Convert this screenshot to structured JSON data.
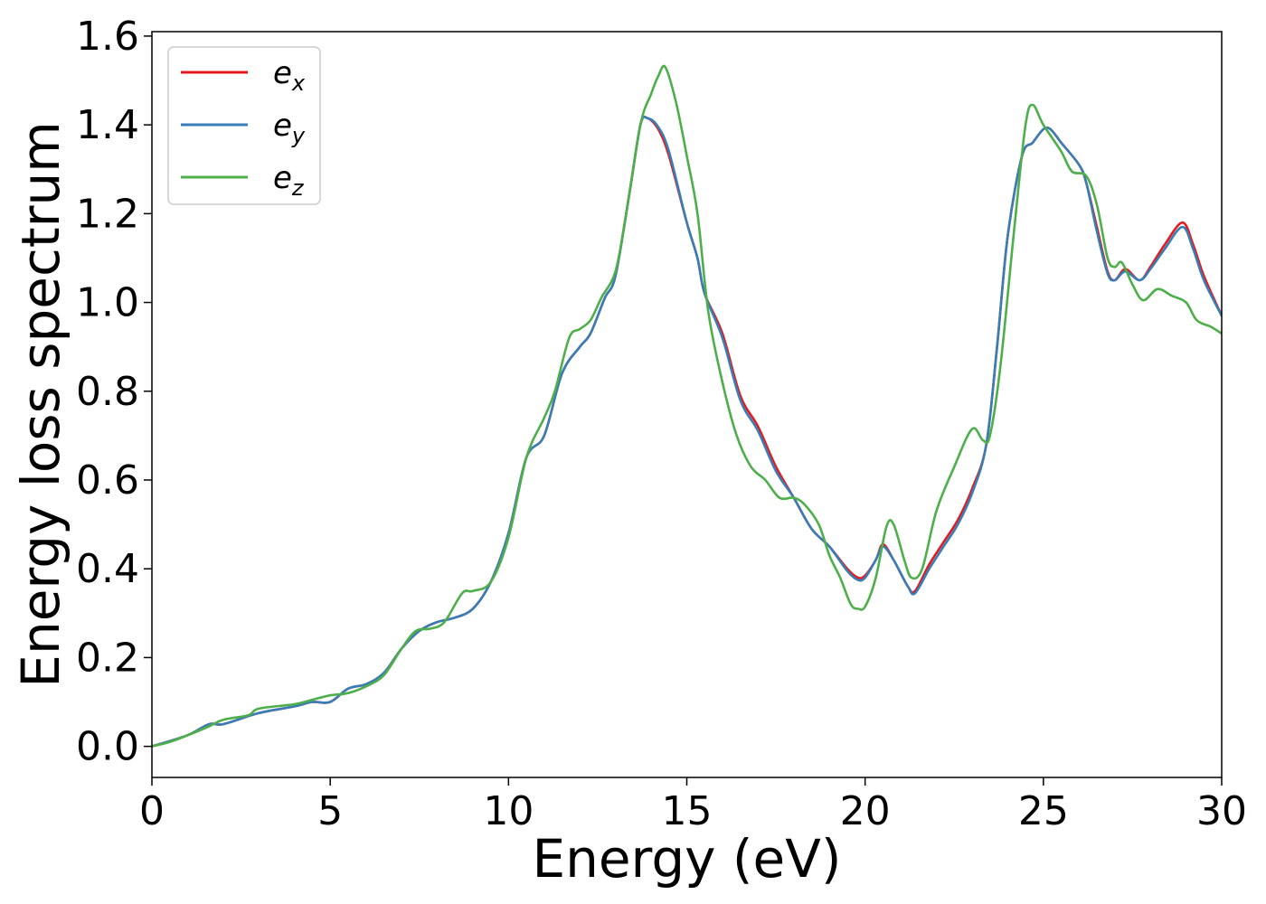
{
  "chart_data": {
    "type": "line",
    "xlabel": "Energy (eV)",
    "ylabel": "Energy loss spectrum",
    "xlim": [
      0,
      30
    ],
    "ylim": [
      -0.07,
      1.61
    ],
    "xticks": [
      0,
      5,
      10,
      15,
      20,
      25,
      30
    ],
    "xtick_labels": [
      "0",
      "5",
      "10",
      "15",
      "20",
      "25",
      "30"
    ],
    "yticks": [
      0.0,
      0.2,
      0.4,
      0.6,
      0.8,
      1.0,
      1.2,
      1.4,
      1.6
    ],
    "ytick_labels": [
      "0.0",
      "0.2",
      "0.4",
      "0.6",
      "0.8",
      "1.0",
      "1.2",
      "1.4",
      "1.6"
    ],
    "grid": false,
    "legend_position": "top-left",
    "series": [
      {
        "name": "e",
        "subscript": "x",
        "color": "#e41a1c",
        "points": [
          [
            0,
            0
          ],
          [
            1,
            0.025
          ],
          [
            1.6,
            0.05
          ],
          [
            2,
            0.05
          ],
          [
            3,
            0.075
          ],
          [
            4,
            0.09
          ],
          [
            4.5,
            0.1
          ],
          [
            5,
            0.1
          ],
          [
            5.5,
            0.13
          ],
          [
            6,
            0.14
          ],
          [
            6.5,
            0.165
          ],
          [
            7,
            0.22
          ],
          [
            7.5,
            0.26
          ],
          [
            8,
            0.28
          ],
          [
            8.5,
            0.29
          ],
          [
            9,
            0.31
          ],
          [
            9.5,
            0.37
          ],
          [
            10,
            0.48
          ],
          [
            10.5,
            0.65
          ],
          [
            11,
            0.7
          ],
          [
            11.5,
            0.84
          ],
          [
            12,
            0.9
          ],
          [
            12.3,
            0.93
          ],
          [
            12.7,
            1.01
          ],
          [
            13,
            1.06
          ],
          [
            13.4,
            1.25
          ],
          [
            13.7,
            1.4
          ],
          [
            13.9,
            1.415
          ],
          [
            14.2,
            1.39
          ],
          [
            14.5,
            1.33
          ],
          [
            15,
            1.18
          ],
          [
            15.3,
            1.1
          ],
          [
            15.5,
            1.02
          ],
          [
            16,
            0.93
          ],
          [
            16.5,
            0.79
          ],
          [
            17,
            0.72
          ],
          [
            17.5,
            0.63
          ],
          [
            18,
            0.56
          ],
          [
            18.5,
            0.49
          ],
          [
            19,
            0.45
          ],
          [
            19.5,
            0.4
          ],
          [
            19.8,
            0.38
          ],
          [
            20,
            0.385
          ],
          [
            20.3,
            0.42
          ],
          [
            20.5,
            0.455
          ],
          [
            20.8,
            0.42
          ],
          [
            21.2,
            0.36
          ],
          [
            21.4,
            0.35
          ],
          [
            21.8,
            0.41
          ],
          [
            22.2,
            0.46
          ],
          [
            22.6,
            0.51
          ],
          [
            23,
            0.58
          ],
          [
            23.4,
            0.68
          ],
          [
            23.7,
            0.9
          ],
          [
            24,
            1.15
          ],
          [
            24.4,
            1.33
          ],
          [
            24.7,
            1.36
          ],
          [
            25,
            1.39
          ],
          [
            25.2,
            1.39
          ],
          [
            25.5,
            1.36
          ],
          [
            26,
            1.31
          ],
          [
            26.2,
            1.27
          ],
          [
            26.5,
            1.17
          ],
          [
            26.8,
            1.07
          ],
          [
            27,
            1.05
          ],
          [
            27.3,
            1.075
          ],
          [
            27.7,
            1.05
          ],
          [
            28,
            1.08
          ],
          [
            28.4,
            1.13
          ],
          [
            28.9,
            1.18
          ],
          [
            29.2,
            1.13
          ],
          [
            29.5,
            1.06
          ],
          [
            30,
            0.97
          ]
        ]
      },
      {
        "name": "e",
        "subscript": "y",
        "color": "#377eb8",
        "points": [
          [
            0,
            0
          ],
          [
            1,
            0.025
          ],
          [
            1.6,
            0.05
          ],
          [
            2,
            0.05
          ],
          [
            3,
            0.075
          ],
          [
            4,
            0.09
          ],
          [
            4.5,
            0.1
          ],
          [
            5,
            0.1
          ],
          [
            5.5,
            0.13
          ],
          [
            6,
            0.14
          ],
          [
            6.5,
            0.165
          ],
          [
            7,
            0.22
          ],
          [
            7.5,
            0.26
          ],
          [
            8,
            0.28
          ],
          [
            8.5,
            0.29
          ],
          [
            9,
            0.31
          ],
          [
            9.5,
            0.37
          ],
          [
            10,
            0.48
          ],
          [
            10.5,
            0.65
          ],
          [
            11,
            0.7
          ],
          [
            11.5,
            0.84
          ],
          [
            12,
            0.9
          ],
          [
            12.3,
            0.93
          ],
          [
            12.7,
            1.01
          ],
          [
            13,
            1.06
          ],
          [
            13.4,
            1.25
          ],
          [
            13.7,
            1.4
          ],
          [
            13.9,
            1.415
          ],
          [
            14.2,
            1.395
          ],
          [
            14.5,
            1.34
          ],
          [
            15,
            1.18
          ],
          [
            15.3,
            1.1
          ],
          [
            15.5,
            1.02
          ],
          [
            16,
            0.92
          ],
          [
            16.5,
            0.78
          ],
          [
            17,
            0.71
          ],
          [
            17.5,
            0.62
          ],
          [
            18,
            0.56
          ],
          [
            18.5,
            0.49
          ],
          [
            19,
            0.45
          ],
          [
            19.5,
            0.395
          ],
          [
            19.8,
            0.375
          ],
          [
            20,
            0.38
          ],
          [
            20.3,
            0.42
          ],
          [
            20.5,
            0.45
          ],
          [
            20.8,
            0.42
          ],
          [
            21.2,
            0.36
          ],
          [
            21.4,
            0.345
          ],
          [
            21.8,
            0.4
          ],
          [
            22.2,
            0.45
          ],
          [
            22.6,
            0.5
          ],
          [
            23,
            0.57
          ],
          [
            23.4,
            0.68
          ],
          [
            23.7,
            0.9
          ],
          [
            24,
            1.15
          ],
          [
            24.4,
            1.33
          ],
          [
            24.7,
            1.36
          ],
          [
            25,
            1.39
          ],
          [
            25.2,
            1.39
          ],
          [
            25.5,
            1.36
          ],
          [
            26,
            1.31
          ],
          [
            26.2,
            1.27
          ],
          [
            26.5,
            1.16
          ],
          [
            26.8,
            1.065
          ],
          [
            27,
            1.05
          ],
          [
            27.3,
            1.07
          ],
          [
            27.7,
            1.05
          ],
          [
            28,
            1.075
          ],
          [
            28.4,
            1.12
          ],
          [
            28.9,
            1.17
          ],
          [
            29.2,
            1.12
          ],
          [
            29.5,
            1.05
          ],
          [
            30,
            0.97
          ]
        ]
      },
      {
        "name": "e",
        "subscript": "z",
        "color": "#4daf4a",
        "points": [
          [
            0,
            0
          ],
          [
            0.5,
            0.01
          ],
          [
            1,
            0.025
          ],
          [
            1.6,
            0.045
          ],
          [
            2,
            0.06
          ],
          [
            2.7,
            0.07
          ],
          [
            3,
            0.085
          ],
          [
            4,
            0.095
          ],
          [
            4.5,
            0.105
          ],
          [
            5,
            0.115
          ],
          [
            5.5,
            0.12
          ],
          [
            6,
            0.135
          ],
          [
            6.5,
            0.16
          ],
          [
            7,
            0.22
          ],
          [
            7.4,
            0.26
          ],
          [
            7.8,
            0.265
          ],
          [
            8.2,
            0.28
          ],
          [
            8.7,
            0.345
          ],
          [
            9,
            0.35
          ],
          [
            9.5,
            0.37
          ],
          [
            10,
            0.47
          ],
          [
            10.5,
            0.65
          ],
          [
            11,
            0.74
          ],
          [
            11.3,
            0.8
          ],
          [
            11.7,
            0.92
          ],
          [
            12,
            0.94
          ],
          [
            12.3,
            0.96
          ],
          [
            12.6,
            1.01
          ],
          [
            13,
            1.07
          ],
          [
            13.3,
            1.2
          ],
          [
            13.7,
            1.4
          ],
          [
            14,
            1.47
          ],
          [
            14.2,
            1.51
          ],
          [
            14.4,
            1.53
          ],
          [
            14.7,
            1.45
          ],
          [
            15,
            1.33
          ],
          [
            15.3,
            1.2
          ],
          [
            15.6,
            0.98
          ],
          [
            16,
            0.82
          ],
          [
            16.4,
            0.7
          ],
          [
            16.8,
            0.63
          ],
          [
            17.2,
            0.6
          ],
          [
            17.6,
            0.56
          ],
          [
            18,
            0.56
          ],
          [
            18.3,
            0.545
          ],
          [
            18.7,
            0.5
          ],
          [
            19,
            0.43
          ],
          [
            19.3,
            0.38
          ],
          [
            19.6,
            0.32
          ],
          [
            19.8,
            0.31
          ],
          [
            20,
            0.315
          ],
          [
            20.3,
            0.38
          ],
          [
            20.6,
            0.495
          ],
          [
            20.8,
            0.5
          ],
          [
            21.1,
            0.42
          ],
          [
            21.3,
            0.38
          ],
          [
            21.6,
            0.4
          ],
          [
            22,
            0.53
          ],
          [
            22.5,
            0.63
          ],
          [
            23,
            0.715
          ],
          [
            23.3,
            0.69
          ],
          [
            23.5,
            0.7
          ],
          [
            23.8,
            0.86
          ],
          [
            24.2,
            1.18
          ],
          [
            24.5,
            1.4
          ],
          [
            24.7,
            1.445
          ],
          [
            25,
            1.4
          ],
          [
            25.5,
            1.34
          ],
          [
            25.8,
            1.295
          ],
          [
            26.2,
            1.285
          ],
          [
            26.5,
            1.22
          ],
          [
            26.8,
            1.1
          ],
          [
            27,
            1.08
          ],
          [
            27.2,
            1.09
          ],
          [
            27.5,
            1.04
          ],
          [
            27.8,
            1.005
          ],
          [
            28.2,
            1.03
          ],
          [
            28.6,
            1.015
          ],
          [
            29,
            1.0
          ],
          [
            29.3,
            0.96
          ],
          [
            29.7,
            0.945
          ],
          [
            30,
            0.93
          ]
        ]
      }
    ]
  }
}
